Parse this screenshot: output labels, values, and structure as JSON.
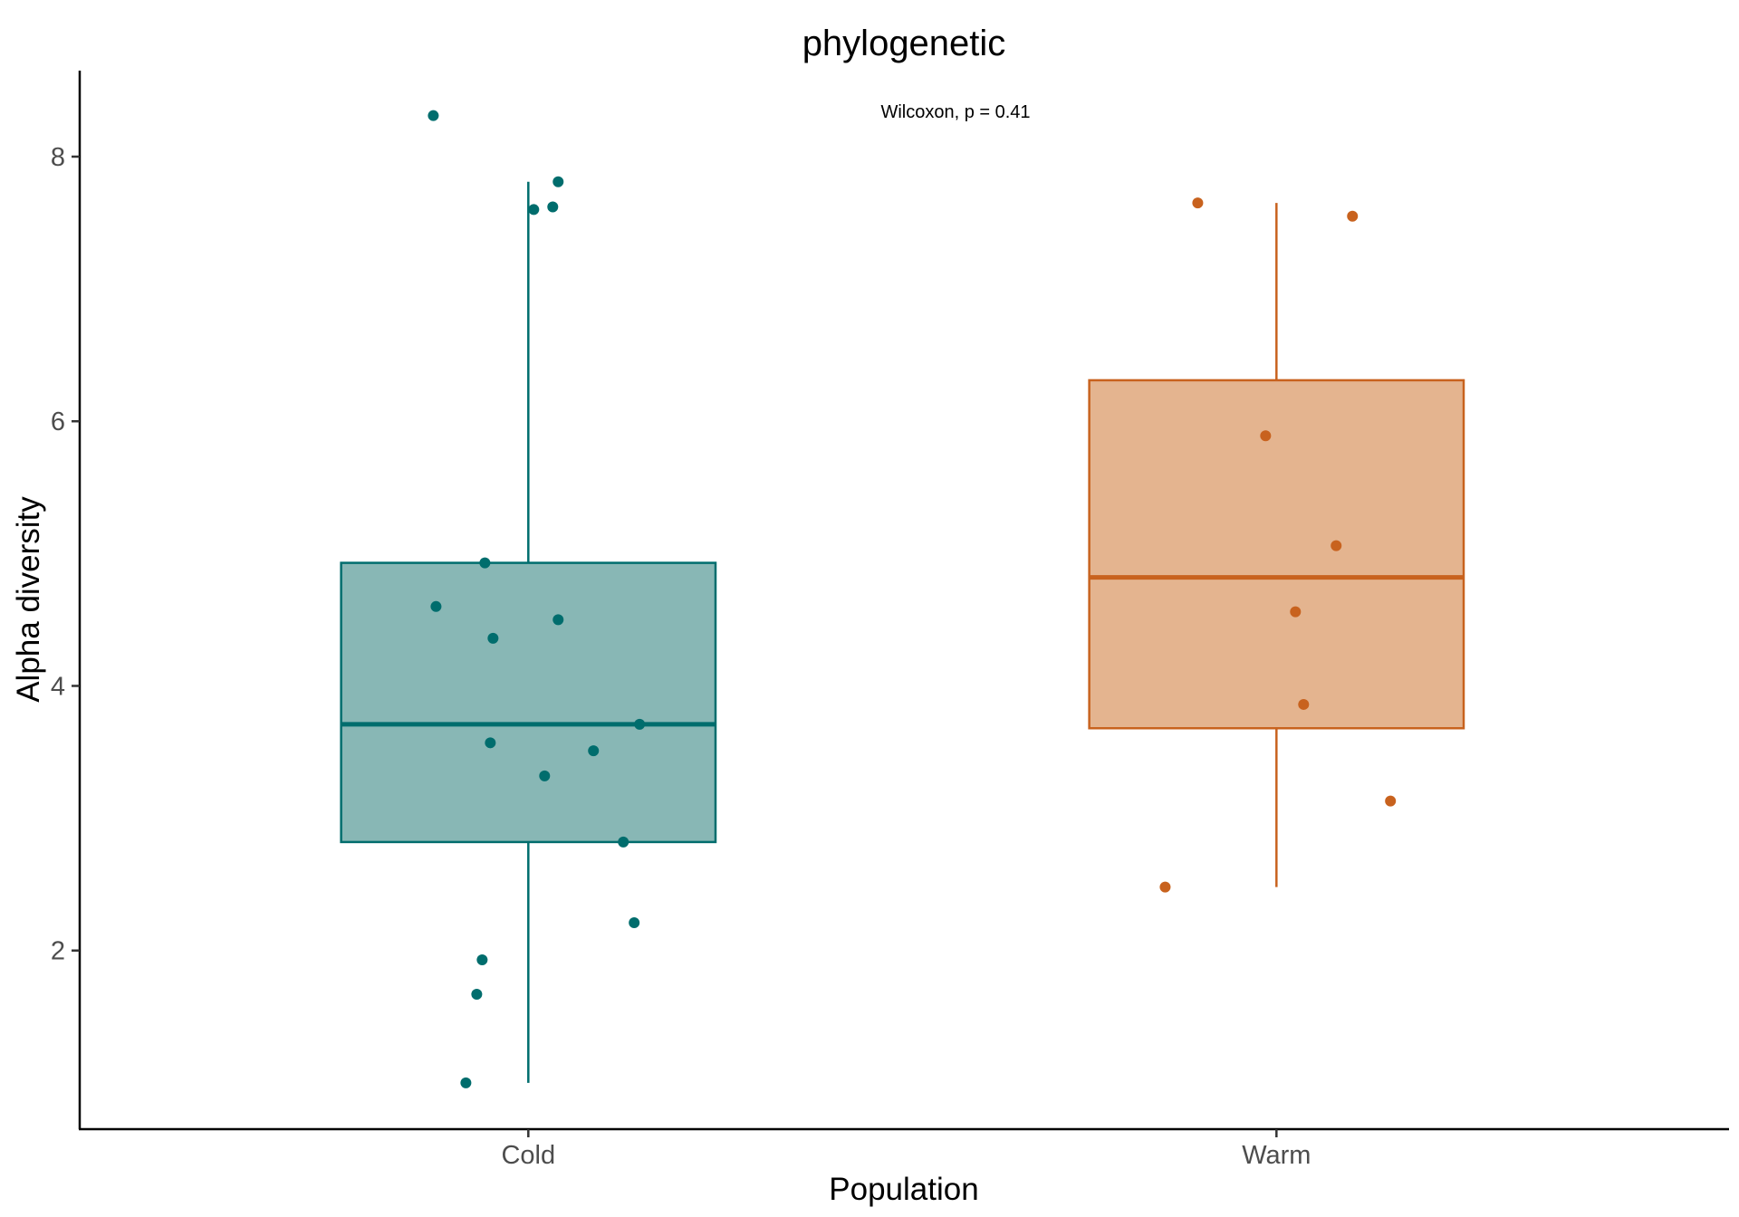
{
  "chart_data": {
    "type": "box",
    "title": "phylogenetic",
    "annotation": "Wilcoxon, p = 0.41",
    "xlabel": "Population",
    "ylabel": "Alpha diversity",
    "categories": [
      "Cold",
      "Warm"
    ],
    "ylim": [
      0.65,
      8.65
    ],
    "yticks": [
      2,
      4,
      6,
      8
    ],
    "ytick_labels": [
      "2",
      "4",
      "6",
      "8"
    ],
    "grid": false,
    "legend": "none",
    "colors": {
      "Cold": "#006d6d",
      "Warm": "#c8621e"
    },
    "fills": {
      "Cold": "#88b7b5",
      "Warm": "#e4b48f"
    },
    "boxes": [
      {
        "category": "Cold",
        "whisker_low": 1.0,
        "q1": 2.82,
        "median": 3.71,
        "q3": 4.93,
        "whisker_high": 7.81
      },
      {
        "category": "Warm",
        "whisker_low": 2.48,
        "q1": 3.68,
        "median": 4.82,
        "q3": 6.31,
        "whisker_high": 7.65
      }
    ],
    "points": {
      "Cold": [
        8.31,
        7.81,
        7.6,
        7.62,
        4.93,
        4.6,
        4.5,
        4.36,
        3.71,
        3.57,
        3.51,
        3.32,
        2.82,
        2.21,
        1.93,
        1.67,
        1.0
      ],
      "Warm": [
        7.65,
        7.55,
        5.89,
        5.06,
        4.56,
        3.86,
        3.13,
        2.48
      ]
    }
  }
}
